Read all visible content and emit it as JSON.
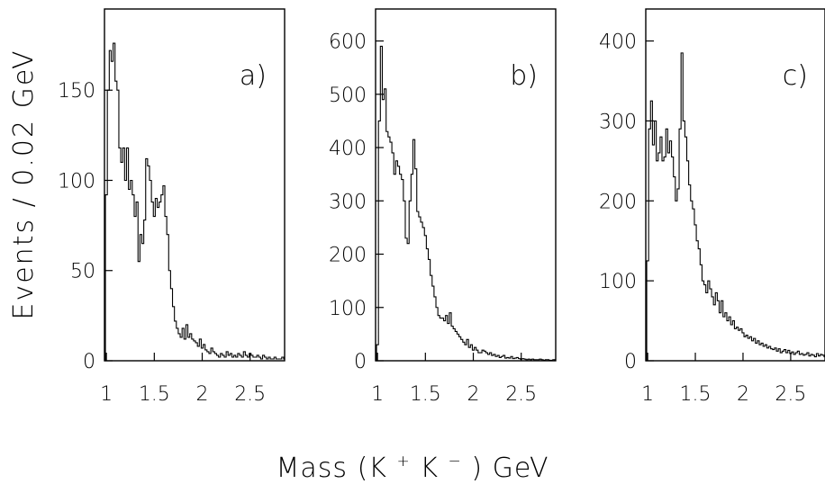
{
  "figure": {
    "ylabel": "Events / 0.02 GeV",
    "xlabel_main": "Mass (K",
    "xlabel_sup1": "+",
    "xlabel_mid": "K",
    "xlabel_sup2": "−",
    "xlabel_end": ") GeV"
  },
  "chart_data": [
    {
      "type": "histogram",
      "panel_label": "a)",
      "x_range": [
        0.98,
        2.86
      ],
      "ylim": [
        0,
        195
      ],
      "x_ticks": [
        1,
        1.5,
        2,
        2.5
      ],
      "x_tick_labels": [
        "1",
        "1.5",
        "2",
        "2.5"
      ],
      "y_ticks": [
        0,
        50,
        100,
        150
      ],
      "y_tick_labels": [
        "0",
        "50",
        "100",
        "150"
      ],
      "bin_width": 0.02,
      "x_start": 0.99,
      "values": [
        92,
        150,
        172,
        166,
        176,
        155,
        150,
        118,
        110,
        118,
        100,
        118,
        95,
        100,
        92,
        80,
        88,
        55,
        70,
        65,
        78,
        112,
        108,
        100,
        88,
        80,
        90,
        85,
        88,
        92,
        97,
        80,
        70,
        50,
        40,
        30,
        22,
        18,
        15,
        13,
        18,
        12,
        20,
        13,
        15,
        12,
        11,
        10,
        8,
        12,
        7,
        9,
        6,
        5,
        4,
        7,
        5,
        4,
        3,
        2,
        4,
        3,
        2,
        5,
        3,
        4,
        2,
        3,
        2,
        4,
        3,
        2,
        5,
        3,
        2,
        4,
        3,
        2,
        2,
        3,
        2,
        1,
        3,
        2,
        1,
        2,
        1,
        1,
        2,
        1,
        1,
        1,
        2,
        1
      ]
    },
    {
      "type": "histogram",
      "panel_label": "b)",
      "x_range": [
        0.98,
        2.86
      ],
      "ylim": [
        0,
        660
      ],
      "x_ticks": [
        1,
        1.5,
        2,
        2.5
      ],
      "x_tick_labels": [
        "1",
        "1.5",
        "2",
        "2.5"
      ],
      "y_ticks": [
        0,
        100,
        200,
        300,
        400,
        500,
        600
      ],
      "y_tick_labels": [
        "0",
        "100",
        "200",
        "300",
        "400",
        "500",
        "600"
      ],
      "bin_width": 0.02,
      "x_start": 0.99,
      "values": [
        30,
        450,
        590,
        490,
        510,
        430,
        420,
        410,
        390,
        350,
        375,
        365,
        350,
        340,
        300,
        230,
        220,
        300,
        350,
        415,
        360,
        280,
        270,
        260,
        250,
        235,
        210,
        190,
        160,
        140,
        120,
        100,
        85,
        80,
        80,
        75,
        85,
        70,
        90,
        65,
        60,
        55,
        50,
        45,
        40,
        35,
        30,
        40,
        25,
        30,
        20,
        25,
        20,
        15,
        15,
        20,
        18,
        15,
        12,
        15,
        10,
        12,
        8,
        10,
        6,
        8,
        10,
        5,
        6,
        5,
        8,
        4,
        5,
        6,
        4,
        3,
        4,
        3,
        2,
        3,
        2,
        3,
        2,
        2,
        2,
        3,
        2,
        1,
        2,
        2,
        1,
        1,
        2,
        1
      ]
    },
    {
      "type": "histogram",
      "panel_label": "c)",
      "x_range": [
        0.98,
        2.86
      ],
      "ylim": [
        0,
        440
      ],
      "x_ticks": [
        1,
        1.5,
        2,
        2.5
      ],
      "x_tick_labels": [
        "1",
        "1.5",
        "2",
        "2.5"
      ],
      "y_ticks": [
        0,
        100,
        200,
        300,
        400
      ],
      "y_tick_labels": [
        "0",
        "100",
        "200",
        "300",
        "400"
      ],
      "bin_width": 0.02,
      "x_start": 0.99,
      "values": [
        125,
        290,
        325,
        270,
        300,
        250,
        260,
        280,
        250,
        255,
        290,
        260,
        275,
        255,
        230,
        200,
        215,
        290,
        385,
        300,
        280,
        250,
        220,
        200,
        190,
        170,
        150,
        140,
        120,
        100,
        95,
        85,
        100,
        90,
        80,
        70,
        85,
        75,
        60,
        75,
        55,
        60,
        50,
        55,
        45,
        50,
        40,
        42,
        38,
        40,
        35,
        30,
        32,
        28,
        30,
        25,
        28,
        22,
        25,
        20,
        22,
        18,
        20,
        16,
        18,
        15,
        14,
        16,
        12,
        15,
        10,
        12,
        14,
        10,
        13,
        9,
        11,
        8,
        10,
        12,
        8,
        9,
        7,
        8,
        10,
        6,
        8,
        7,
        5,
        9,
        6,
        8,
        7,
        5
      ]
    }
  ]
}
